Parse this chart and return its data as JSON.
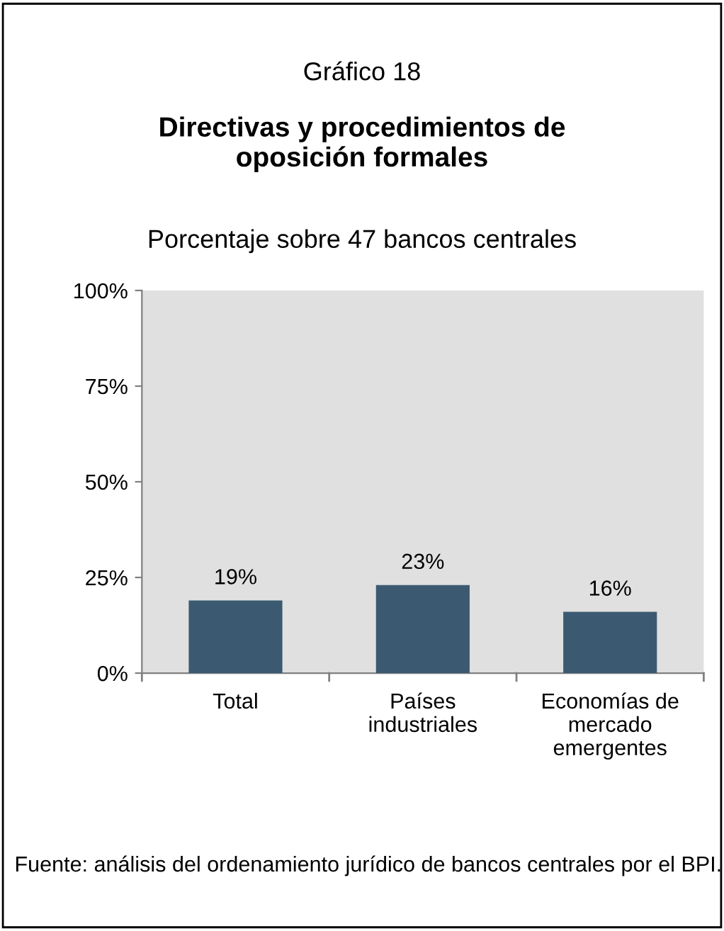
{
  "chart_data": {
    "type": "bar",
    "title": "Directivas y procedimientos de\noposición formales",
    "subtitle": "Porcentaje sobre 47 bancos centrales",
    "annotations": [
      "Gráfico 18",
      "Fuente: análisis del ordenamiento jurídico de bancos centrales por el BPI."
    ],
    "categories": [
      "Total",
      "Países\nindustriales",
      "Economías de\nmercado\nemergentes"
    ],
    "values": [
      19,
      23,
      16
    ],
    "color": "#3b5a72",
    "value_labels": [
      "19%",
      "23%",
      "16%"
    ],
    "ylim": [
      0,
      100
    ],
    "yticks": [
      {
        "value": 0,
        "label": "0%"
      },
      {
        "value": 25,
        "label": "25%"
      },
      {
        "value": 50,
        "label": "50%"
      },
      {
        "value": 75,
        "label": "75%"
      },
      {
        "value": 100,
        "label": "100%"
      }
    ],
    "grid": false
  }
}
